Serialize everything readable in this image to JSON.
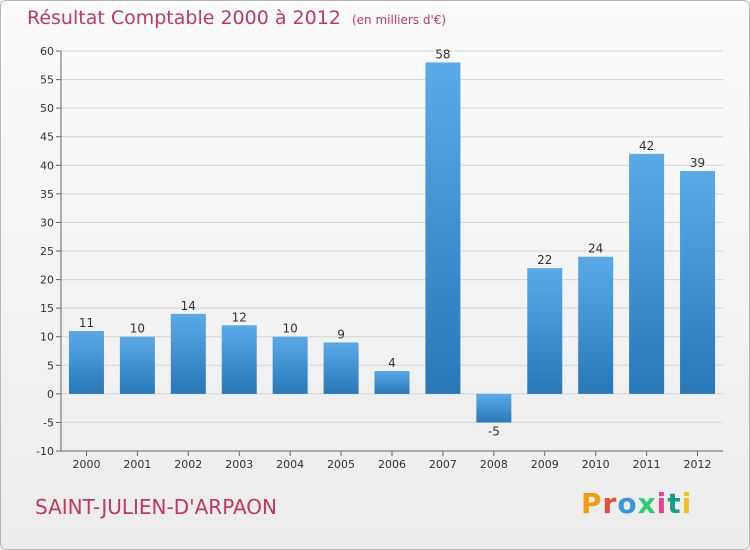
{
  "header": {
    "title": "Résultat Comptable 2000 à 2012",
    "subtitle": "(en milliers d'€)"
  },
  "footer": {
    "commune": "SAINT-JULIEN-D'ARPAON",
    "brand_letters": [
      "P",
      "r",
      "o",
      "x",
      "i",
      "t",
      "i"
    ]
  },
  "colors": {
    "bar_top": "#5aaae8",
    "bar_bottom": "#2878b8",
    "title": "#c0395d",
    "grid": "#d4d4d4"
  },
  "chart_data": {
    "type": "bar",
    "title": "Résultat Comptable 2000 à 2012",
    "xlabel": "",
    "ylabel": "",
    "categories": [
      "2000",
      "2001",
      "2002",
      "2003",
      "2004",
      "2005",
      "2006",
      "2007",
      "2008",
      "2009",
      "2010",
      "2011",
      "2012"
    ],
    "values": [
      11,
      10,
      14,
      12,
      10,
      9,
      4,
      58,
      -5,
      22,
      24,
      42,
      39
    ],
    "ylim": [
      -10,
      60
    ],
    "yticks": [
      -10,
      -5,
      0,
      5,
      10,
      15,
      20,
      25,
      30,
      35,
      40,
      45,
      50,
      55,
      60
    ],
    "grid": true,
    "legend": "none"
  }
}
